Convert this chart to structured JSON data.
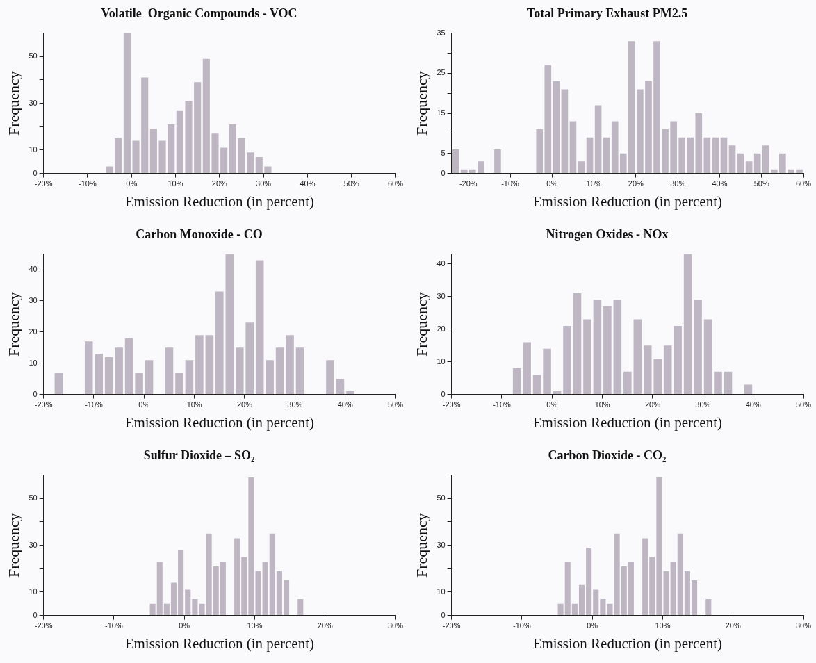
{
  "chart_data": [
    {
      "type": "histogram",
      "title": "Volatile  Organic Compounds - VOC",
      "xlabel": "Emission Reduction (in percent)",
      "ylabel": "Frequency",
      "color": "#bfb6c3",
      "bins": [
        -6,
        -4,
        -2,
        0,
        2,
        4,
        6,
        8,
        10,
        12,
        14,
        16,
        18,
        20,
        22,
        24,
        26,
        28,
        30,
        32
      ],
      "values": [
        3,
        15,
        60,
        14,
        41,
        19,
        14,
        21,
        27,
        31,
        39,
        49,
        17,
        11,
        21,
        15,
        9,
        7,
        3
      ],
      "xlim": [
        -20,
        60
      ],
      "xticks": [
        {
          "value": -20,
          "label": "-20%"
        },
        {
          "value": -10,
          "label": "-10%"
        },
        {
          "value": 0,
          "label": "0%"
        },
        {
          "value": 10,
          "label": "10%"
        },
        {
          "value": 20,
          "label": "20%"
        },
        {
          "value": 30,
          "label": "30%"
        },
        {
          "value": 40,
          "label": "40%"
        },
        {
          "value": 50,
          "label": "50%"
        },
        {
          "value": 60,
          "label": "60%"
        }
      ],
      "ylim": [
        0,
        60
      ],
      "yticks": [
        0,
        10,
        {
          "value": 20,
          "label": null
        },
        30,
        {
          "value": 40,
          "label": null
        },
        50,
        {
          "value": 60,
          "label": null
        }
      ]
    },
    {
      "type": "histogram",
      "title": "Total Primary Exhaust PM2.5",
      "xlabel": "Emission Reduction (in percent)",
      "ylabel": "Frequency",
      "color": "#bfb6c3",
      "bins": [
        -24,
        -22,
        -20,
        -18,
        -16,
        -14,
        -12,
        -10,
        -8,
        -6,
        -4,
        -2,
        0,
        2,
        4,
        6,
        8,
        10,
        12,
        14,
        16,
        18,
        20,
        22,
        24,
        26,
        28,
        30,
        32,
        34,
        36,
        38,
        40,
        42,
        44,
        46,
        48,
        50,
        52,
        54,
        56,
        58,
        60
      ],
      "values": [
        6,
        1,
        1,
        3,
        0,
        6,
        0,
        0,
        0,
        0,
        11,
        27,
        23,
        21,
        13,
        3,
        9,
        17,
        9,
        13,
        5,
        33,
        21,
        23,
        33,
        11,
        13,
        9,
        9,
        15,
        9,
        9,
        9,
        7,
        5,
        3,
        5,
        7,
        1,
        5,
        1,
        1
      ],
      "xlim": [
        -24,
        60
      ],
      "xticks": [
        {
          "value": -20,
          "label": "-20%"
        },
        {
          "value": -10,
          "label": "-10%"
        },
        {
          "value": 0,
          "label": "0%"
        },
        {
          "value": 10,
          "label": "10%"
        },
        {
          "value": 20,
          "label": "20%"
        },
        {
          "value": 30,
          "label": "30%"
        },
        {
          "value": 40,
          "label": "40%"
        },
        {
          "value": 50,
          "label": "50%"
        },
        {
          "value": 60,
          "label": "60%"
        }
      ],
      "ylim": [
        0,
        35
      ],
      "yticks": [
        0,
        5,
        {
          "value": 10,
          "label": null
        },
        15,
        {
          "value": 20,
          "label": null
        },
        25,
        {
          "value": 30,
          "label": null
        },
        35
      ]
    },
    {
      "type": "histogram",
      "title": "Carbon Monoxide - CO",
      "xlabel": "Emission Reduction (in percent)",
      "ylabel": "Frequency",
      "color": "#bfb6c3",
      "bins": [
        -18,
        -16,
        -14,
        -12,
        -10,
        -8,
        -6,
        -4,
        -2,
        0,
        2,
        4,
        6,
        8,
        10,
        12,
        14,
        16,
        18,
        20,
        22,
        24,
        26,
        28,
        30,
        32,
        34,
        36,
        38,
        40,
        42
      ],
      "values": [
        7,
        0,
        0,
        17,
        13,
        12,
        15,
        18,
        7,
        11,
        0,
        15,
        7,
        11,
        19,
        19,
        33,
        45,
        15,
        23,
        43,
        11,
        15,
        19,
        15,
        0,
        0,
        11,
        5,
        1
      ],
      "xlim": [
        -20,
        50
      ],
      "xticks": [
        {
          "value": -20,
          "label": "-20%"
        },
        {
          "value": -10,
          "label": "-10%"
        },
        {
          "value": 0,
          "label": "0%"
        },
        {
          "value": 10,
          "label": "10%"
        },
        {
          "value": 20,
          "label": "20%"
        },
        {
          "value": 30,
          "label": "30%"
        },
        {
          "value": 40,
          "label": "40%"
        },
        {
          "value": 50,
          "label": "50%"
        }
      ],
      "ylim": [
        0,
        45
      ],
      "yticks": [
        0,
        10,
        20,
        30,
        40
      ]
    },
    {
      "type": "histogram",
      "title": "Nitrogen Oxides - NOx",
      "xlabel": "Emission Reduction (in percent)",
      "ylabel": "Frequency",
      "color": "#bfb6c3",
      "bins": [
        -8,
        -6,
        -4,
        -2,
        0,
        2,
        4,
        6,
        8,
        10,
        12,
        14,
        16,
        18,
        20,
        22,
        24,
        26,
        28,
        30,
        32,
        34,
        36,
        38,
        40
      ],
      "values": [
        8,
        16,
        6,
        14,
        1,
        21,
        31,
        23,
        29,
        27,
        29,
        7,
        23,
        15,
        11,
        15,
        21,
        43,
        29,
        23,
        7,
        7,
        0,
        3
      ],
      "xlim": [
        -20,
        50
      ],
      "xticks": [
        {
          "value": -20,
          "label": "-20%"
        },
        {
          "value": -10,
          "label": "-10%"
        },
        {
          "value": 0,
          "label": "0%"
        },
        {
          "value": 10,
          "label": "10%"
        },
        {
          "value": 20,
          "label": "20%"
        },
        {
          "value": 30,
          "label": "30%"
        },
        {
          "value": 40,
          "label": "40%"
        },
        {
          "value": 50,
          "label": "50%"
        }
      ],
      "ylim": [
        0,
        43
      ],
      "yticks": [
        0,
        10,
        20,
        30,
        40
      ]
    },
    {
      "type": "histogram",
      "title": "Sulfur Dioxide – SO₂",
      "xlabel": "Emission Reduction (in percent)",
      "ylabel": "Frequency",
      "color": "#bfb6c3",
      "bins": [
        -5,
        -4,
        -3,
        -2,
        -1,
        0,
        1,
        2,
        3,
        4,
        5,
        6,
        7,
        8,
        9,
        10,
        11,
        12,
        13,
        14,
        15,
        16,
        17
      ],
      "values": [
        5,
        23,
        5,
        14,
        28,
        11,
        7,
        5,
        35,
        21,
        23,
        0,
        33,
        25,
        59,
        19,
        23,
        35,
        19,
        15,
        0,
        7
      ],
      "xlim": [
        -20,
        30
      ],
      "xticks": [
        {
          "value": -20,
          "label": "-20%"
        },
        {
          "value": -10,
          "label": "-10%"
        },
        {
          "value": 0,
          "label": "0%"
        },
        {
          "value": 10,
          "label": "10%"
        },
        {
          "value": 20,
          "label": "20%"
        },
        {
          "value": 30,
          "label": "30%"
        }
      ],
      "ylim": [
        0,
        60
      ],
      "yticks": [
        0,
        10,
        {
          "value": 20,
          "label": null
        },
        30,
        {
          "value": 40,
          "label": null
        },
        50,
        {
          "value": 60,
          "label": null
        }
      ]
    },
    {
      "type": "histogram",
      "title": "Carbon Dioxide - CO₂",
      "xlabel": "Emission Reduction (in percent)",
      "ylabel": "Frequency",
      "color": "#bfb6c3",
      "bins": [
        -5,
        -4,
        -3,
        -2,
        -1,
        0,
        1,
        2,
        3,
        4,
        5,
        6,
        7,
        8,
        9,
        10,
        11,
        12,
        13,
        14,
        15,
        16,
        17
      ],
      "values": [
        5,
        23,
        5,
        13,
        29,
        11,
        7,
        5,
        35,
        21,
        23,
        0,
        33,
        25,
        59,
        19,
        23,
        35,
        19,
        15,
        0,
        7
      ],
      "xlim": [
        -20,
        30
      ],
      "xticks": [
        {
          "value": -20,
          "label": "-20%"
        },
        {
          "value": -10,
          "label": "-10%"
        },
        {
          "value": 0,
          "label": "0%"
        },
        {
          "value": 10,
          "label": "10%"
        },
        {
          "value": 20,
          "label": "20%"
        },
        {
          "value": 30,
          "label": "30%"
        }
      ],
      "ylim": [
        0,
        60
      ],
      "yticks": [
        0,
        10,
        {
          "value": 20,
          "label": null
        },
        30,
        {
          "value": 40,
          "label": null
        },
        50,
        {
          "value": 60,
          "label": null
        }
      ]
    }
  ]
}
